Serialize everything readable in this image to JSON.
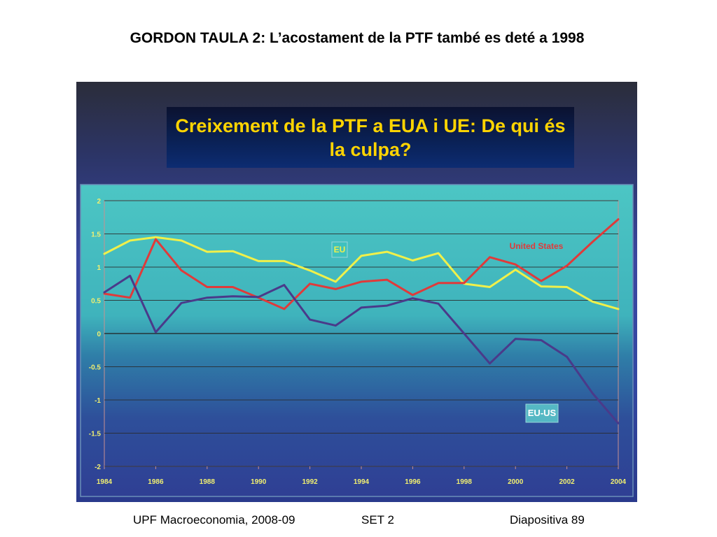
{
  "slide": {
    "title": "GORDON TAULA 2: L’acostament de la PTF també es deté a 1998",
    "footer_left": "UPF Macroeconomia, 2008-09",
    "footer_center": "SET 2",
    "footer_right": "Diapositiva 89"
  },
  "chart_data": {
    "type": "line",
    "title": "Creixement de la PTF a EUA i UE: De qui és la culpa?",
    "xlabel": "",
    "ylabel": "",
    "x": [
      1984,
      1985,
      1986,
      1987,
      1988,
      1989,
      1990,
      1991,
      1992,
      1993,
      1994,
      1995,
      1996,
      1997,
      1998,
      1999,
      2000,
      2001,
      2002,
      2003,
      2004
    ],
    "xticks": [
      "1984",
      "1986",
      "1988",
      "1990",
      "1992",
      "1994",
      "1996",
      "1998",
      "2000",
      "2002",
      "2004"
    ],
    "yticks": [
      "2",
      "1.5",
      "1",
      "0.5",
      "0",
      "-0.5",
      "-1",
      "-1.5",
      "-2"
    ],
    "ylim": [
      -2,
      2
    ],
    "grid": true,
    "series": [
      {
        "name": "EU",
        "label": "EU",
        "color": "#f0f04a",
        "values": [
          1.2,
          1.4,
          1.45,
          1.4,
          1.23,
          1.24,
          1.09,
          1.09,
          0.95,
          0.78,
          1.17,
          1.23,
          1.1,
          1.21,
          0.75,
          0.7,
          0.96,
          0.71,
          0.7,
          0.48,
          0.37
        ]
      },
      {
        "name": "United States",
        "label": "United States",
        "color": "#e03a3a",
        "values": [
          0.6,
          0.54,
          1.42,
          0.95,
          0.7,
          0.7,
          0.54,
          0.37,
          0.75,
          0.67,
          0.78,
          0.81,
          0.58,
          0.76,
          0.76,
          1.15,
          1.04,
          0.79,
          1.02,
          1.38,
          1.72
        ]
      },
      {
        "name": "EU-US",
        "label": "EU-US",
        "color": "#4a3a8a",
        "values": [
          0.62,
          0.87,
          0.02,
          0.46,
          0.54,
          0.56,
          0.55,
          0.73,
          0.21,
          0.12,
          0.39,
          0.42,
          0.53,
          0.45,
          0.0,
          -0.45,
          -0.08,
          -0.1,
          -0.35,
          -0.9,
          -1.35
        ]
      }
    ]
  }
}
